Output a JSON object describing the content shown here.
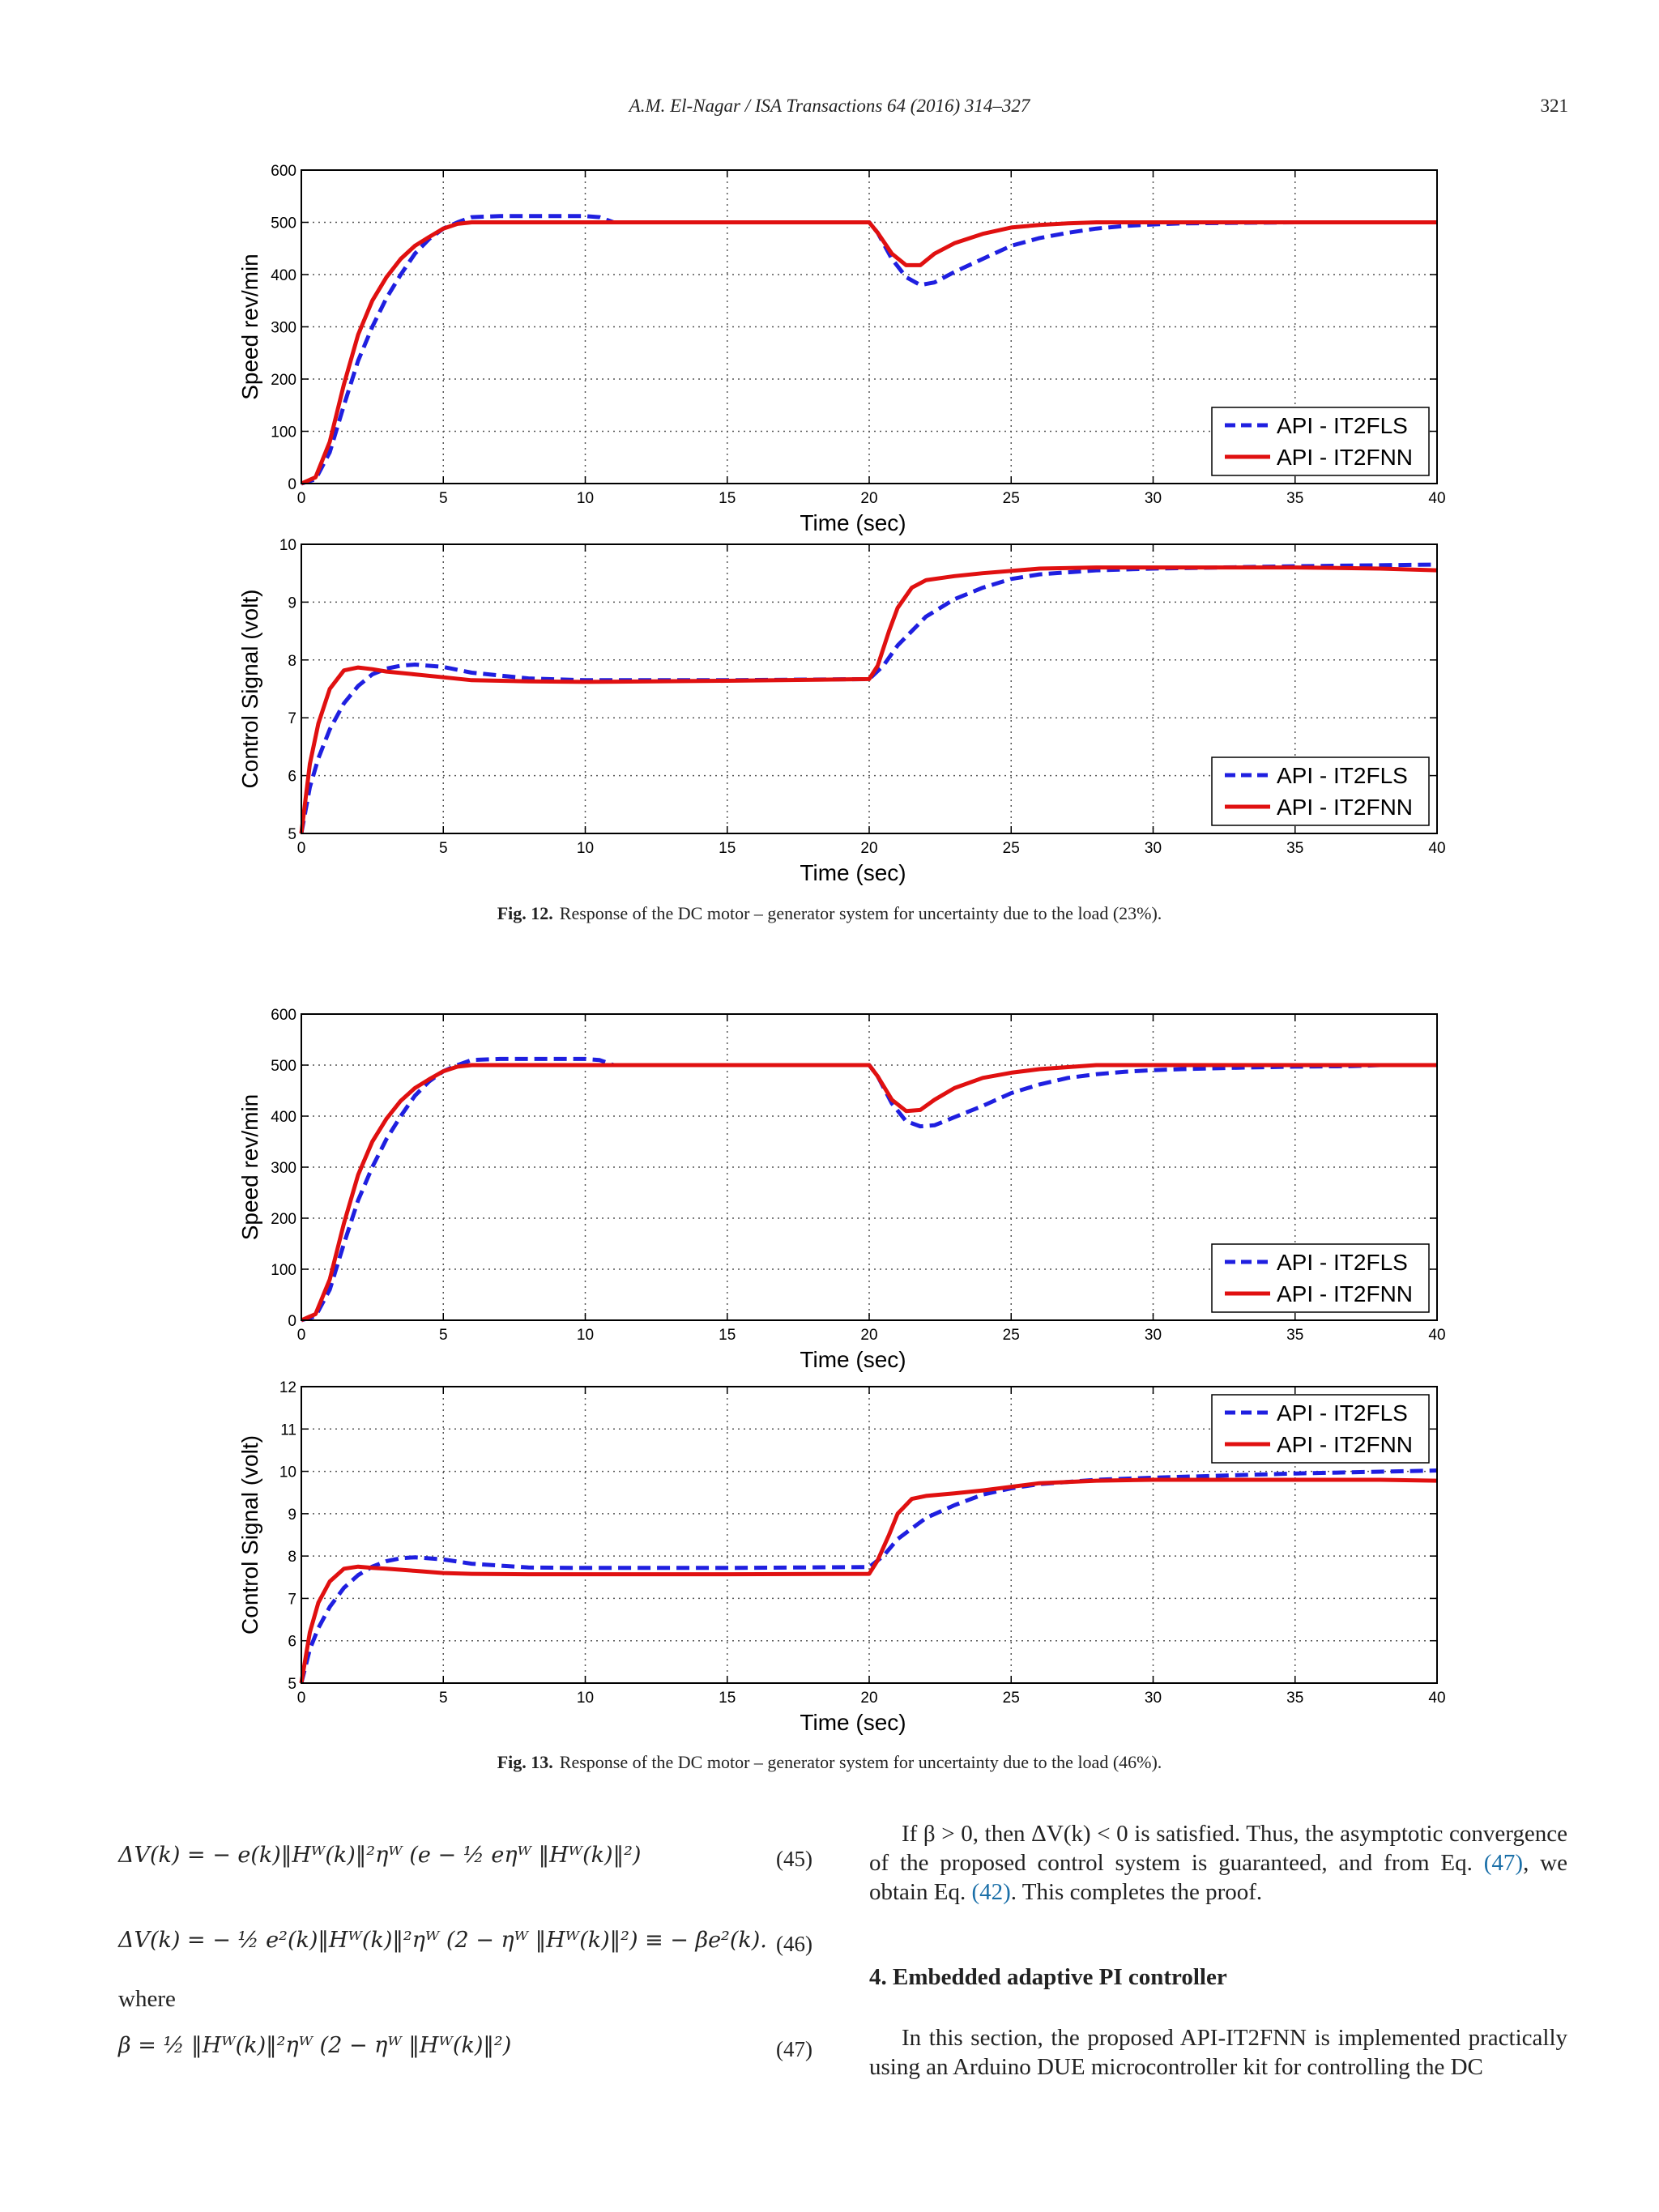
{
  "header": {
    "journal": "A.M. El-Nagar / ISA Transactions 64 (2016) 314–327",
    "page": "321"
  },
  "figures": [
    {
      "label": "Fig. 12.",
      "caption": "Response of the DC motor – generator system for uncertainty due to the load (23%)."
    },
    {
      "label": "Fig. 13.",
      "caption": "Response of the DC motor – generator system for uncertainty due to the load (46%)."
    }
  ],
  "chart_data": [
    {
      "type": "line",
      "xlabel": "Time (sec)",
      "ylabel": "Speed rev/min",
      "xlim": [
        0,
        40
      ],
      "ylim": [
        0,
        600
      ],
      "xticks": [
        0,
        5,
        10,
        15,
        20,
        25,
        30,
        35,
        40
      ],
      "yticks": [
        0,
        100,
        200,
        300,
        400,
        500,
        600
      ],
      "grid": true,
      "legend": "bottom-right",
      "series": [
        {
          "name": "API - IT2FLS",
          "color": "#1f1fe0",
          "style": "dashed",
          "x": [
            0,
            0.5,
            1,
            1.5,
            2,
            2.5,
            3,
            3.5,
            4,
            4.5,
            5,
            5.5,
            6,
            7,
            8,
            9,
            10,
            10.5,
            11,
            15,
            20,
            20.3,
            20.8,
            21.3,
            21.8,
            22.3,
            23,
            24,
            25,
            26,
            27,
            28,
            29,
            30,
            31,
            33,
            35,
            37,
            38,
            40
          ],
          "y": [
            0,
            8,
            60,
            150,
            235,
            300,
            355,
            400,
            440,
            468,
            488,
            500,
            510,
            512,
            512,
            512,
            512,
            510,
            500,
            500,
            500,
            480,
            430,
            395,
            380,
            385,
            405,
            430,
            455,
            470,
            480,
            488,
            493,
            496,
            498,
            499,
            500,
            500,
            500,
            500
          ]
        },
        {
          "name": "API - IT2FNN",
          "color": "#e01010",
          "style": "solid",
          "x": [
            0,
            0.5,
            1,
            1.5,
            2,
            2.5,
            3,
            3.5,
            4,
            4.5,
            5,
            5.5,
            6,
            7,
            10,
            15,
            20,
            20.3,
            20.8,
            21.3,
            21.8,
            22.3,
            23,
            24,
            25,
            26,
            27,
            28,
            30,
            35,
            40
          ],
          "y": [
            0,
            12,
            80,
            190,
            285,
            350,
            395,
            430,
            455,
            472,
            488,
            497,
            500,
            500,
            500,
            500,
            500,
            480,
            440,
            418,
            418,
            440,
            460,
            478,
            490,
            495,
            498,
            500,
            500,
            500,
            500
          ]
        }
      ]
    },
    {
      "type": "line",
      "xlabel": "Time (sec)",
      "ylabel": "Control Signal (volt)",
      "xlim": [
        0,
        40
      ],
      "ylim": [
        5,
        10
      ],
      "xticks": [
        0,
        5,
        10,
        15,
        20,
        25,
        30,
        35,
        40
      ],
      "yticks": [
        5,
        6,
        7,
        8,
        9,
        10
      ],
      "grid": true,
      "legend": "bottom-right",
      "series": [
        {
          "name": "API - IT2FLS",
          "color": "#1f1fe0",
          "style": "dashed",
          "x": [
            0,
            0.3,
            0.6,
            1,
            1.5,
            2,
            2.5,
            3,
            3.5,
            4,
            5,
            6,
            8,
            10,
            15,
            20,
            20.5,
            21,
            22,
            23,
            24,
            25,
            26,
            28,
            30,
            35,
            40
          ],
          "y": [
            5,
            5.8,
            6.3,
            6.8,
            7.25,
            7.55,
            7.75,
            7.85,
            7.9,
            7.92,
            7.88,
            7.78,
            7.68,
            7.65,
            7.65,
            7.67,
            7.9,
            8.25,
            8.75,
            9.05,
            9.25,
            9.4,
            9.48,
            9.55,
            9.58,
            9.62,
            9.65
          ]
        },
        {
          "name": "API - IT2FNN",
          "color": "#e01010",
          "style": "solid",
          "x": [
            0,
            0.3,
            0.6,
            1,
            1.5,
            2,
            2.5,
            3,
            4,
            5,
            6,
            8,
            10,
            15,
            20,
            20.3,
            20.7,
            21,
            21.5,
            22,
            23,
            24,
            26,
            28,
            30,
            35,
            38,
            40
          ],
          "y": [
            5,
            6.2,
            6.9,
            7.5,
            7.82,
            7.87,
            7.84,
            7.8,
            7.75,
            7.7,
            7.65,
            7.63,
            7.62,
            7.64,
            7.67,
            7.9,
            8.5,
            8.9,
            9.25,
            9.38,
            9.45,
            9.5,
            9.58,
            9.6,
            9.6,
            9.6,
            9.58,
            9.55
          ]
        }
      ]
    },
    {
      "type": "line",
      "xlabel": "Time (sec)",
      "ylabel": "Speed rev/min",
      "xlim": [
        0,
        40
      ],
      "ylim": [
        0,
        600
      ],
      "xticks": [
        0,
        5,
        10,
        15,
        20,
        25,
        30,
        35,
        40
      ],
      "yticks": [
        0,
        100,
        200,
        300,
        400,
        500,
        600
      ],
      "grid": true,
      "legend": "bottom-right",
      "series": [
        {
          "name": "API - IT2FLS",
          "color": "#1f1fe0",
          "style": "dashed",
          "x": [
            0,
            0.5,
            1,
            1.5,
            2,
            2.5,
            3,
            3.5,
            4,
            4.5,
            5,
            5.5,
            6,
            7,
            8,
            9,
            10,
            10.5,
            11,
            15,
            20,
            20.3,
            20.8,
            21.3,
            21.8,
            22.3,
            23,
            24,
            25,
            26,
            27,
            28,
            29,
            30,
            31,
            33,
            35,
            37,
            38,
            40
          ],
          "y": [
            0,
            8,
            60,
            150,
            235,
            300,
            355,
            400,
            440,
            468,
            488,
            500,
            510,
            512,
            512,
            512,
            512,
            510,
            500,
            500,
            500,
            478,
            425,
            390,
            380,
            382,
            398,
            420,
            445,
            462,
            475,
            482,
            487,
            490,
            492,
            495,
            497,
            498,
            500,
            500
          ]
        },
        {
          "name": "API - IT2FNN",
          "color": "#e01010",
          "style": "solid",
          "x": [
            0,
            0.5,
            1,
            1.5,
            2,
            2.5,
            3,
            3.5,
            4,
            4.5,
            5,
            5.5,
            6,
            7,
            10,
            15,
            20,
            20.3,
            20.8,
            21.3,
            21.8,
            22.3,
            23,
            24,
            25,
            26,
            27,
            28,
            30,
            35,
            40
          ],
          "y": [
            0,
            12,
            80,
            190,
            285,
            350,
            395,
            430,
            455,
            472,
            488,
            497,
            500,
            500,
            500,
            500,
            500,
            478,
            432,
            410,
            412,
            432,
            455,
            475,
            485,
            492,
            496,
            500,
            500,
            500,
            500
          ]
        }
      ]
    },
    {
      "type": "line",
      "xlabel": "Time (sec)",
      "ylabel": "Control Signal (volt)",
      "xlim": [
        0,
        40
      ],
      "ylim": [
        5,
        12
      ],
      "xticks": [
        0,
        5,
        10,
        15,
        20,
        25,
        30,
        35,
        40
      ],
      "yticks": [
        5,
        6,
        7,
        8,
        9,
        10,
        11,
        12
      ],
      "grid": true,
      "legend": "top-right",
      "series": [
        {
          "name": "API - IT2FLS",
          "color": "#1f1fe0",
          "style": "dashed",
          "x": [
            0,
            0.3,
            0.6,
            1,
            1.5,
            2,
            2.5,
            3,
            3.5,
            4,
            5,
            6,
            8,
            10,
            15,
            20,
            20.5,
            21,
            22,
            23,
            24,
            25,
            26,
            28,
            30,
            35,
            40
          ],
          "y": [
            5,
            5.8,
            6.3,
            6.8,
            7.25,
            7.55,
            7.75,
            7.88,
            7.95,
            7.97,
            7.92,
            7.82,
            7.73,
            7.72,
            7.72,
            7.74,
            8.0,
            8.4,
            8.9,
            9.2,
            9.45,
            9.6,
            9.7,
            9.8,
            9.85,
            9.95,
            10.02
          ]
        },
        {
          "name": "API - IT2FNN",
          "color": "#e01010",
          "style": "solid",
          "x": [
            0,
            0.3,
            0.6,
            1,
            1.5,
            2,
            2.5,
            3,
            4,
            5,
            6,
            8,
            10,
            15,
            20,
            20.3,
            20.7,
            21,
            21.5,
            22,
            23,
            24,
            26,
            28,
            30,
            35,
            38,
            40
          ],
          "y": [
            5,
            6.2,
            6.9,
            7.4,
            7.7,
            7.75,
            7.72,
            7.7,
            7.65,
            7.6,
            7.58,
            7.57,
            7.57,
            7.57,
            7.58,
            7.9,
            8.5,
            9.0,
            9.35,
            9.42,
            9.48,
            9.55,
            9.72,
            9.78,
            9.8,
            9.8,
            9.8,
            9.78
          ]
        }
      ]
    }
  ],
  "equations": {
    "eq45": "ΔV(k) = − e(k)‖Hᵂ(k)‖²ηᵂ (e − ½ eηᵂ ‖Hᵂ(k)‖²)",
    "eq45_num": "(45)",
    "eq46": "ΔV(k) = − ½ e²(k)‖Hᵂ(k)‖²ηᵂ (2 − ηᵂ ‖Hᵂ(k)‖²) ≡ − βe²(k).",
    "eq46_num": "(46)",
    "where": "where",
    "eq47": "β = ½ ‖Hᵂ(k)‖²ηᵂ (2 − ηᵂ ‖Hᵂ(k)‖²)",
    "eq47_num": "(47)"
  },
  "right_column": {
    "para1_a": "If β > 0, then ΔV(k) < 0 is satisfied. Thus, the asymptotic convergence of the proposed control system is guaranteed, and from Eq. ",
    "ref47": "(47)",
    "para1_b": ", we obtain Eq. ",
    "ref42": "(42)",
    "para1_c": ". This completes the proof.",
    "section_heading": "4.  Embedded adaptive PI controller",
    "para2": "In this section, the proposed API-IT2FNN is implemented practically using an Arduino DUE microcontroller kit for controlling the DC"
  }
}
